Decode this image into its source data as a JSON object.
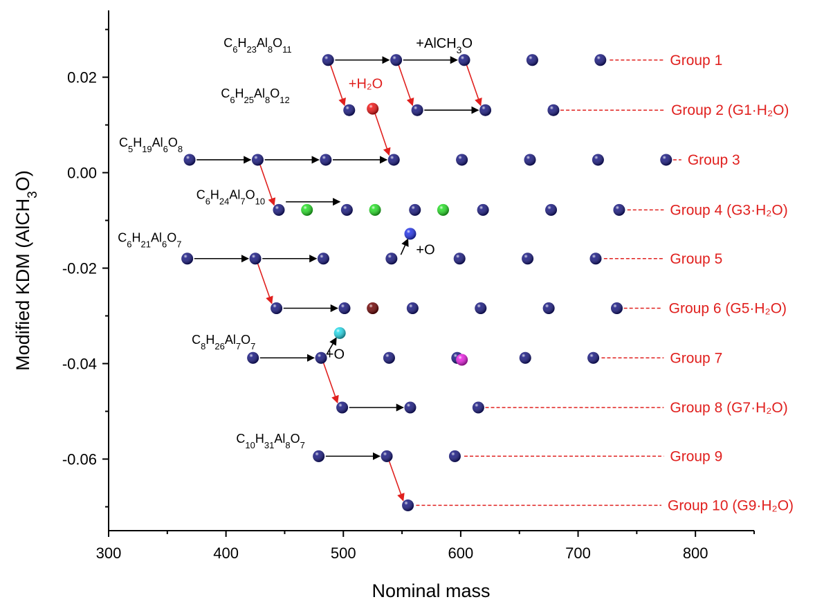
{
  "chart_data": {
    "type": "scatter",
    "title": "",
    "xlabel": "Nominal mass",
    "ylabel": "Modified KDM (AlCH3O)",
    "ylabel_parts": [
      {
        "text": "Modified KDM (AlCH",
        "sub": false
      },
      {
        "text": "3",
        "sub": true
      },
      {
        "text": "O)",
        "sub": false
      }
    ],
    "xlim": [
      300,
      850
    ],
    "ylim": [
      -0.075,
      0.034
    ],
    "x_ticks": [
      300,
      400,
      500,
      600,
      700,
      800
    ],
    "x_tick_labels": [
      "300",
      "400",
      "500",
      "600",
      "700",
      "800"
    ],
    "y_ticks": [
      -0.06,
      -0.04,
      -0.02,
      0.0,
      0.02
    ],
    "y_tick_labels": [
      "-0.06",
      "-0.04",
      "-0.02",
      "0.00",
      "0.02"
    ],
    "grid": false,
    "series": [
      {
        "name": "Group 1",
        "color": "#14147e",
        "x": [
          487,
          545,
          603,
          661,
          719
        ],
        "y": [
          0.0236,
          0.0236,
          0.0236,
          0.0236,
          0.0236
        ]
      },
      {
        "name": "Group 2 (G1·H₂O)",
        "color": "#14147e",
        "x": [
          505,
          563,
          621,
          679
        ],
        "y": [
          0.0131,
          0.0131,
          0.0131,
          0.0131
        ]
      },
      {
        "name": "Group 3",
        "color": "#14147e",
        "x": [
          369,
          427,
          485,
          543,
          601,
          659,
          717,
          775
        ],
        "y": [
          0.0027,
          0.0027,
          0.0027,
          0.0027,
          0.0027,
          0.0027,
          0.0027,
          0.0027
        ]
      },
      {
        "name": "Group 4 (G3·H₂O)",
        "color": "#14147e",
        "x": [
          445,
          503,
          561,
          619,
          677,
          735
        ],
        "y": [
          -0.0078,
          -0.0078,
          -0.0078,
          -0.0078,
          -0.0078,
          -0.0078
        ]
      },
      {
        "name": "Group 5",
        "color": "#14147e",
        "x": [
          367,
          425,
          483,
          541,
          599,
          657,
          715
        ],
        "y": [
          -0.018,
          -0.018,
          -0.018,
          -0.018,
          -0.018,
          -0.018,
          -0.018
        ]
      },
      {
        "name": "Group 6 (G5·H₂O)",
        "color": "#14147e",
        "x": [
          443,
          501,
          559,
          617,
          675,
          733
        ],
        "y": [
          -0.0284,
          -0.0284,
          -0.0284,
          -0.0284,
          -0.0284,
          -0.0284
        ]
      },
      {
        "name": "Group 7",
        "color": "#14147e",
        "x": [
          423,
          481,
          539,
          597,
          655,
          713
        ],
        "y": [
          -0.0388,
          -0.0388,
          -0.0388,
          -0.0388,
          -0.0388,
          -0.0388
        ]
      },
      {
        "name": "Group 8 (G7·H₂O)",
        "color": "#14147e",
        "x": [
          499,
          557,
          615
        ],
        "y": [
          -0.0492,
          -0.0492,
          -0.0492
        ]
      },
      {
        "name": "Group 9",
        "color": "#14147e",
        "x": [
          479,
          537,
          595
        ],
        "y": [
          -0.0594,
          -0.0594,
          -0.0594
        ]
      },
      {
        "name": "Group 10 (G9·H₂O)",
        "color": "#14147e",
        "x": [
          555
        ],
        "y": [
          -0.0697
        ]
      }
    ],
    "extra_points": [
      {
        "x": 525,
        "y": 0.0134,
        "color": "#ee1111"
      },
      {
        "x": 469,
        "y": -0.0078,
        "color": "#22dd22"
      },
      {
        "x": 527,
        "y": -0.0078,
        "color": "#22dd22"
      },
      {
        "x": 585,
        "y": -0.0078,
        "color": "#22dd22"
      },
      {
        "x": 557,
        "y": -0.0128,
        "color": "#1f2fe6"
      },
      {
        "x": 525,
        "y": -0.0284,
        "color": "#6e0000"
      },
      {
        "x": 497,
        "y": -0.0336,
        "color": "#22d8e8"
      },
      {
        "x": 601,
        "y": -0.0392,
        "color": "#e81ce0"
      }
    ],
    "arrows": [
      {
        "x1": 493,
        "y1": 0.0236,
        "x2": 539,
        "y2": 0.0236,
        "color": "#000000"
      },
      {
        "x1": 551,
        "y1": 0.0236,
        "x2": 597,
        "y2": 0.0236,
        "color": "#000000"
      },
      {
        "x1": 569,
        "y1": 0.0131,
        "x2": 615,
        "y2": 0.0131,
        "color": "#000000"
      },
      {
        "x1": 375,
        "y1": 0.0027,
        "x2": 421,
        "y2": 0.0027,
        "color": "#000000"
      },
      {
        "x1": 433,
        "y1": 0.0027,
        "x2": 479,
        "y2": 0.0027,
        "color": "#000000"
      },
      {
        "x1": 491,
        "y1": 0.0027,
        "x2": 537,
        "y2": 0.0027,
        "color": "#000000"
      },
      {
        "x1": 451,
        "y1": -0.0061,
        "x2": 497,
        "y2": -0.0061,
        "color": "#000000"
      },
      {
        "x1": 373,
        "y1": -0.018,
        "x2": 419,
        "y2": -0.018,
        "color": "#000000"
      },
      {
        "x1": 431,
        "y1": -0.018,
        "x2": 477,
        "y2": -0.018,
        "color": "#000000"
      },
      {
        "x1": 449,
        "y1": -0.0284,
        "x2": 495,
        "y2": -0.0284,
        "color": "#000000"
      },
      {
        "x1": 429,
        "y1": -0.0388,
        "x2": 475,
        "y2": -0.0388,
        "color": "#000000"
      },
      {
        "x1": 505,
        "y1": -0.0492,
        "x2": 551,
        "y2": -0.0492,
        "color": "#000000"
      },
      {
        "x1": 485,
        "y1": -0.0594,
        "x2": 531,
        "y2": -0.0594,
        "color": "#000000"
      },
      {
        "x1": 549,
        "y1": -0.0172,
        "x2": 555,
        "y2": -0.0139,
        "color": "#000000"
      },
      {
        "x1": 486,
        "y1": -0.038,
        "x2": 494,
        "y2": -0.0346,
        "color": "#000000"
      },
      {
        "x1": 489,
        "y1": 0.0226,
        "x2": 501,
        "y2": 0.0141,
        "color": "#e0201e"
      },
      {
        "x1": 547,
        "y1": 0.0226,
        "x2": 559,
        "y2": 0.0141,
        "color": "#e0201e"
      },
      {
        "x1": 605,
        "y1": 0.0226,
        "x2": 617,
        "y2": 0.0141,
        "color": "#e0201e"
      },
      {
        "x1": 527,
        "y1": 0.0124,
        "x2": 539,
        "y2": 0.0037,
        "color": "#e0201e"
      },
      {
        "x1": 429,
        "y1": 0.0017,
        "x2": 441,
        "y2": -0.0068,
        "color": "#e0201e"
      },
      {
        "x1": 427,
        "y1": -0.019,
        "x2": 439,
        "y2": -0.0274,
        "color": "#e0201e"
      },
      {
        "x1": 483,
        "y1": -0.0398,
        "x2": 495,
        "y2": -0.0482,
        "color": "#e0201e"
      },
      {
        "x1": 539,
        "y1": -0.0604,
        "x2": 551,
        "y2": -0.0687,
        "color": "#e0201e"
      }
    ],
    "formula_labels": [
      {
        "x": 427,
        "y": 0.0272,
        "parts": [
          [
            "C",
            false
          ],
          [
            "6",
            true
          ],
          [
            "H",
            false
          ],
          [
            "23",
            true
          ],
          [
            "Al",
            false
          ],
          [
            "8",
            true
          ],
          [
            "O",
            false
          ],
          [
            "11",
            true
          ]
        ]
      },
      {
        "x": 425,
        "y": 0.0166,
        "parts": [
          [
            "C",
            false
          ],
          [
            "6",
            true
          ],
          [
            "H",
            false
          ],
          [
            "25",
            true
          ],
          [
            "Al",
            false
          ],
          [
            "8",
            true
          ],
          [
            "O",
            false
          ],
          [
            "12",
            true
          ]
        ]
      },
      {
        "x": 336,
        "y": 0.0063,
        "parts": [
          [
            "C",
            false
          ],
          [
            "5",
            true
          ],
          [
            "H",
            false
          ],
          [
            "19",
            true
          ],
          [
            "Al",
            false
          ],
          [
            "6",
            true
          ],
          [
            "O",
            false
          ],
          [
            "8",
            true
          ]
        ]
      },
      {
        "x": 404,
        "y": -0.0046,
        "parts": [
          [
            "C",
            false
          ],
          [
            "6",
            true
          ],
          [
            "H",
            false
          ],
          [
            "24",
            true
          ],
          [
            "Al",
            false
          ],
          [
            "7",
            true
          ],
          [
            "O",
            false
          ],
          [
            "10",
            true
          ]
        ]
      },
      {
        "x": 335,
        "y": -0.0136,
        "parts": [
          [
            "C",
            false
          ],
          [
            "6",
            true
          ],
          [
            "H",
            false
          ],
          [
            "21",
            true
          ],
          [
            "Al",
            false
          ],
          [
            "6",
            true
          ],
          [
            "O",
            false
          ],
          [
            "7",
            true
          ]
        ]
      },
      {
        "x": 398,
        "y": -0.035,
        "parts": [
          [
            "C",
            false
          ],
          [
            "8",
            true
          ],
          [
            "H",
            false
          ],
          [
            "26",
            true
          ],
          [
            "Al",
            false
          ],
          [
            "7",
            true
          ],
          [
            "O",
            false
          ],
          [
            "7",
            true
          ]
        ]
      },
      {
        "x": 438,
        "y": -0.0557,
        "parts": [
          [
            "C",
            false
          ],
          [
            "10",
            true
          ],
          [
            "H",
            false
          ],
          [
            "31",
            true
          ],
          [
            "Al",
            false
          ],
          [
            "8",
            true
          ],
          [
            "O",
            false
          ],
          [
            "7",
            true
          ]
        ]
      }
    ],
    "annotations": [
      {
        "id": "alch3o",
        "x": 586,
        "y": 0.0272,
        "color": "#000000",
        "parts": [
          [
            "+AlCH",
            false
          ],
          [
            "3",
            true
          ],
          [
            "O",
            false
          ]
        ]
      },
      {
        "id": "h2o",
        "x": 519,
        "y": 0.0187,
        "color": "#e0201e",
        "parts": [
          [
            "+H₂O",
            false
          ]
        ]
      },
      {
        "id": "plus-o-1",
        "x": 570,
        "y": -0.0161,
        "color": "#000000",
        "parts": [
          [
            "+O",
            false
          ]
        ]
      },
      {
        "id": "plus-o-2",
        "x": 493,
        "y": -0.038,
        "color": "#000000",
        "parts": [
          [
            "+O",
            false
          ]
        ]
      }
    ],
    "group_labels": [
      {
        "text": "Group 1",
        "line_start": 727,
        "line_end": 773,
        "y": 0.0236
      },
      {
        "text": "Group 2 (G1·H₂O)",
        "line_start": 685,
        "line_end": 774,
        "y": 0.0131
      },
      {
        "text": "Group 3",
        "line_start": 781,
        "line_end": 788,
        "y": 0.0027
      },
      {
        "text": "Group 4 (G3·H₂O)",
        "line_start": 742,
        "line_end": 773,
        "y": -0.0078
      },
      {
        "text": "Group 5",
        "line_start": 722,
        "line_end": 773,
        "y": -0.018
      },
      {
        "text": "Group 6 (G5·H₂O)",
        "line_start": 739,
        "line_end": 772,
        "y": -0.0284
      },
      {
        "text": "Group 7",
        "line_start": 720,
        "line_end": 773,
        "y": -0.0388
      },
      {
        "text": "Group 8 (G7·H₂O)",
        "line_start": 621,
        "line_end": 773,
        "y": -0.0492
      },
      {
        "text": "Group 9",
        "line_start": 603,
        "line_end": 773,
        "y": -0.0594
      },
      {
        "text": "Group 10 (G9·H₂O)",
        "line_start": 562,
        "line_end": 771,
        "y": -0.0697
      }
    ]
  }
}
